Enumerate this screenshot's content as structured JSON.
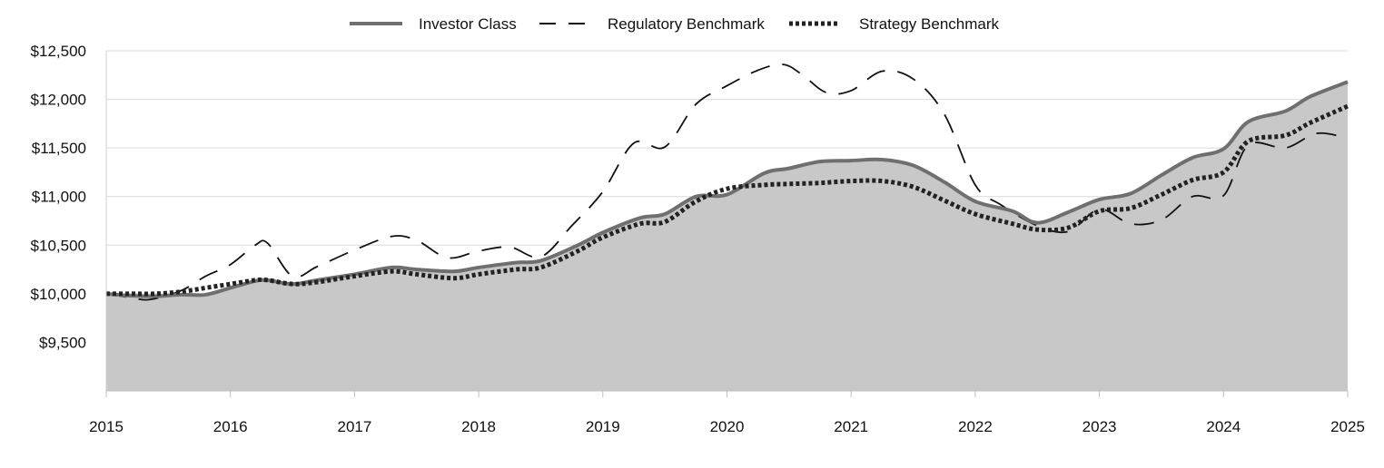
{
  "chart_data": {
    "type": "line",
    "title": "",
    "xlabel": "",
    "ylabel": "",
    "ylim": [
      9000,
      12500
    ],
    "xlim": [
      2015,
      2025
    ],
    "x_ticks": [
      "2015",
      "2016",
      "2017",
      "2018",
      "2019",
      "2020",
      "2021",
      "2022",
      "2023",
      "2024",
      "2025"
    ],
    "y_ticks": [
      {
        "value": 9500,
        "label": "$9,500"
      },
      {
        "value": 10000,
        "label": "$10,000"
      },
      {
        "value": 10500,
        "label": "$10,500"
      },
      {
        "value": 11000,
        "label": "$11,000"
      },
      {
        "value": 11500,
        "label": "$11,500"
      },
      {
        "value": 12000,
        "label": "$12,000"
      },
      {
        "value": 12500,
        "label": "$12,500"
      }
    ],
    "grid": true,
    "legend": "top-center",
    "series": [
      {
        "name": "Investor Class",
        "style": "solid-area",
        "color": "#6f6f6f",
        "fill": "#c8c8c8",
        "points": [
          [
            2015.0,
            10000
          ],
          [
            2015.2,
            9980
          ],
          [
            2015.4,
            9975
          ],
          [
            2015.6,
            9990
          ],
          [
            2015.8,
            9990
          ],
          [
            2016.0,
            10060
          ],
          [
            2016.2,
            10130
          ],
          [
            2016.3,
            10140
          ],
          [
            2016.5,
            10100
          ],
          [
            2016.7,
            10140
          ],
          [
            2017.0,
            10200
          ],
          [
            2017.3,
            10270
          ],
          [
            2017.5,
            10250
          ],
          [
            2017.8,
            10230
          ],
          [
            2018.0,
            10270
          ],
          [
            2018.3,
            10320
          ],
          [
            2018.5,
            10340
          ],
          [
            2018.8,
            10500
          ],
          [
            2019.0,
            10630
          ],
          [
            2019.3,
            10780
          ],
          [
            2019.5,
            10820
          ],
          [
            2019.75,
            11000
          ],
          [
            2020.0,
            11020
          ],
          [
            2020.3,
            11240
          ],
          [
            2020.5,
            11290
          ],
          [
            2020.75,
            11360
          ],
          [
            2021.0,
            11370
          ],
          [
            2021.25,
            11380
          ],
          [
            2021.5,
            11320
          ],
          [
            2021.75,
            11150
          ],
          [
            2022.0,
            10950
          ],
          [
            2022.3,
            10850
          ],
          [
            2022.5,
            10730
          ],
          [
            2022.75,
            10840
          ],
          [
            2023.0,
            10970
          ],
          [
            2023.25,
            11030
          ],
          [
            2023.5,
            11220
          ],
          [
            2023.75,
            11400
          ],
          [
            2024.0,
            11490
          ],
          [
            2024.2,
            11770
          ],
          [
            2024.5,
            11880
          ],
          [
            2024.7,
            12030
          ],
          [
            2025.0,
            12180
          ]
        ]
      },
      {
        "name": "Regulatory Benchmark",
        "style": "dashed",
        "color": "#111111",
        "points": [
          [
            2015.0,
            10000
          ],
          [
            2015.2,
            9960
          ],
          [
            2015.35,
            9940
          ],
          [
            2015.6,
            10030
          ],
          [
            2015.8,
            10180
          ],
          [
            2016.0,
            10300
          ],
          [
            2016.2,
            10500
          ],
          [
            2016.3,
            10520
          ],
          [
            2016.5,
            10180
          ],
          [
            2016.7,
            10280
          ],
          [
            2017.0,
            10450
          ],
          [
            2017.3,
            10590
          ],
          [
            2017.5,
            10550
          ],
          [
            2017.75,
            10370
          ],
          [
            2018.0,
            10440
          ],
          [
            2018.25,
            10480
          ],
          [
            2018.5,
            10380
          ],
          [
            2018.75,
            10700
          ],
          [
            2019.0,
            11050
          ],
          [
            2019.25,
            11550
          ],
          [
            2019.5,
            11510
          ],
          [
            2019.75,
            11950
          ],
          [
            2020.0,
            12140
          ],
          [
            2020.25,
            12300
          ],
          [
            2020.45,
            12360
          ],
          [
            2020.6,
            12260
          ],
          [
            2020.8,
            12070
          ],
          [
            2021.0,
            12090
          ],
          [
            2021.25,
            12290
          ],
          [
            2021.5,
            12210
          ],
          [
            2021.75,
            11850
          ],
          [
            2022.0,
            11120
          ],
          [
            2022.2,
            10920
          ],
          [
            2022.5,
            10700
          ],
          [
            2022.75,
            10640
          ],
          [
            2023.0,
            10870
          ],
          [
            2023.25,
            10720
          ],
          [
            2023.5,
            10760
          ],
          [
            2023.75,
            11000
          ],
          [
            2024.0,
            11010
          ],
          [
            2024.2,
            11530
          ],
          [
            2024.5,
            11500
          ],
          [
            2024.75,
            11650
          ],
          [
            2025.0,
            11600
          ]
        ]
      },
      {
        "name": "Strategy Benchmark",
        "style": "dotted",
        "color": "#222222",
        "points": [
          [
            2015.0,
            10000
          ],
          [
            2015.2,
            10000
          ],
          [
            2015.4,
            10000
          ],
          [
            2015.6,
            10020
          ],
          [
            2015.8,
            10060
          ],
          [
            2016.0,
            10100
          ],
          [
            2016.2,
            10140
          ],
          [
            2016.3,
            10140
          ],
          [
            2016.5,
            10100
          ],
          [
            2016.7,
            10120
          ],
          [
            2017.0,
            10180
          ],
          [
            2017.3,
            10230
          ],
          [
            2017.5,
            10200
          ],
          [
            2017.8,
            10160
          ],
          [
            2018.0,
            10200
          ],
          [
            2018.3,
            10250
          ],
          [
            2018.5,
            10270
          ],
          [
            2018.8,
            10440
          ],
          [
            2019.0,
            10580
          ],
          [
            2019.3,
            10720
          ],
          [
            2019.5,
            10740
          ],
          [
            2019.75,
            10950
          ],
          [
            2020.0,
            11080
          ],
          [
            2020.3,
            11120
          ],
          [
            2020.5,
            11130
          ],
          [
            2020.75,
            11140
          ],
          [
            2021.0,
            11160
          ],
          [
            2021.25,
            11160
          ],
          [
            2021.5,
            11100
          ],
          [
            2021.75,
            10960
          ],
          [
            2022.0,
            10820
          ],
          [
            2022.3,
            10720
          ],
          [
            2022.5,
            10660
          ],
          [
            2022.75,
            10680
          ],
          [
            2023.0,
            10850
          ],
          [
            2023.25,
            10880
          ],
          [
            2023.5,
            11020
          ],
          [
            2023.75,
            11170
          ],
          [
            2024.0,
            11250
          ],
          [
            2024.2,
            11570
          ],
          [
            2024.5,
            11630
          ],
          [
            2024.7,
            11760
          ],
          [
            2025.0,
            11930
          ]
        ]
      }
    ]
  }
}
